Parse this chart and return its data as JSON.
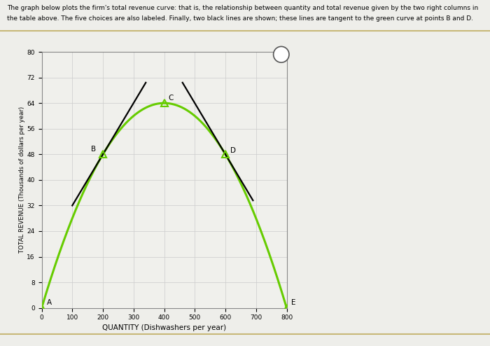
{
  "title_line1": "The graph below plots the firm's total revenue curve: that is, the relationship between quantity and total revenue given by the two right columns in",
  "title_line2": "the table above. The five choices are also labeled. Finally, two black lines are shown; these lines are tangent to the green curve at points B and D.",
  "xlabel": "QUANTITY (Dishwashers per year)",
  "ylabel": "TOTAL REVENUE (Thousands of dollars per year)",
  "xlim": [
    0,
    800
  ],
  "ylim": [
    0,
    80
  ],
  "xticks": [
    0,
    100,
    200,
    300,
    400,
    500,
    600,
    700,
    800
  ],
  "yticks": [
    0,
    8,
    16,
    24,
    32,
    40,
    48,
    56,
    64,
    72,
    80
  ],
  "points": {
    "A": [
      0,
      0
    ],
    "B": [
      200,
      48
    ],
    "C": [
      400,
      64
    ],
    "D": [
      600,
      48
    ],
    "E": [
      800,
      0
    ]
  },
  "curve_color": "#66cc00",
  "tangent_color": "#000000",
  "bg_color": "#eeeeea",
  "plot_bg": "#f0f0ec",
  "grid_color": "#cccccc",
  "parabola_a": -0.0004,
  "parabola_b": 0.32,
  "parabola_c": 0.0,
  "tangent_B_xrange": [
    100,
    340
  ],
  "tangent_D_xrange": [
    460,
    690
  ]
}
